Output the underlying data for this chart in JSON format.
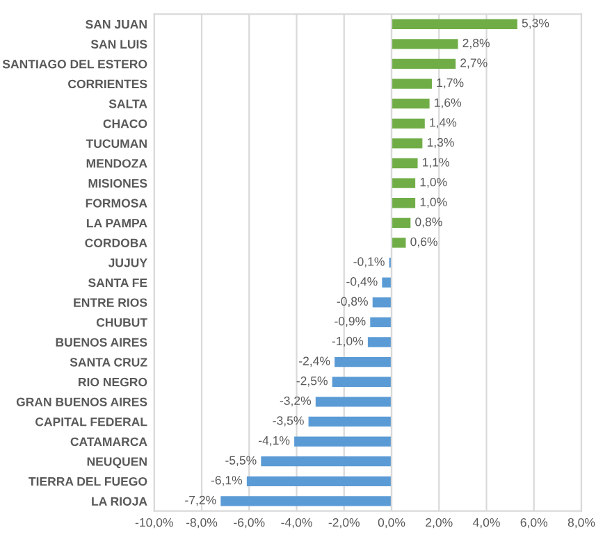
{
  "chart_data": {
    "type": "bar",
    "orientation": "horizontal",
    "categories": [
      "SAN JUAN",
      "SAN LUIS",
      "SANTIAGO DEL ESTERO",
      "CORRIENTES",
      "SALTA",
      "CHACO",
      "TUCUMAN",
      "MENDOZA",
      "MISIONES",
      "FORMOSA",
      "LA PAMPA",
      "CORDOBA",
      "JUJUY",
      "SANTA FE",
      "ENTRE RIOS",
      "CHUBUT",
      "BUENOS AIRES",
      "SANTA CRUZ",
      "RIO NEGRO",
      "GRAN BUENOS AIRES",
      "CAPITAL FEDERAL",
      "CATAMARCA",
      "NEUQUEN",
      "TIERRA DEL FUEGO",
      "LA RIOJA"
    ],
    "values": [
      5.3,
      2.8,
      2.7,
      1.7,
      1.6,
      1.4,
      1.3,
      1.1,
      1.0,
      1.0,
      0.8,
      0.6,
      -0.1,
      -0.4,
      -0.8,
      -0.9,
      -1.0,
      -2.4,
      -2.5,
      -3.2,
      -3.5,
      -4.1,
      -5.5,
      -6.1,
      -7.2
    ],
    "value_labels": [
      "5,3%",
      "2,8%",
      "2,7%",
      "1,7%",
      "1,6%",
      "1,4%",
      "1,3%",
      "1,1%",
      "1,0%",
      "1,0%",
      "0,8%",
      "0,6%",
      "-0,1%",
      "-0,4%",
      "-0,8%",
      "-0,9%",
      "-1,0%",
      "-2,4%",
      "-2,5%",
      "-3,2%",
      "-3,5%",
      "-4,1%",
      "-5,5%",
      "-6,1%",
      "-7,2%"
    ],
    "colors": [
      "#70ad47",
      "#70ad47",
      "#70ad47",
      "#70ad47",
      "#70ad47",
      "#70ad47",
      "#70ad47",
      "#70ad47",
      "#70ad47",
      "#70ad47",
      "#70ad47",
      "#70ad47",
      "#5b9bd5",
      "#5b9bd5",
      "#5b9bd5",
      "#5b9bd5",
      "#5b9bd5",
      "#5b9bd5",
      "#5b9bd5",
      "#5b9bd5",
      "#5b9bd5",
      "#5b9bd5",
      "#5b9bd5",
      "#5b9bd5",
      "#5b9bd5"
    ],
    "xlim": [
      -10,
      8
    ],
    "xticks": [
      {
        "value": -10,
        "label": "-10,0%"
      },
      {
        "value": -8,
        "label": "-8,0%"
      },
      {
        "value": -6,
        "label": "-6,0%"
      },
      {
        "value": -4,
        "label": "-4,0%"
      },
      {
        "value": -2,
        "label": "-2,0%"
      },
      {
        "value": 0,
        "label": "0,0%"
      },
      {
        "value": 2,
        "label": "2,0%"
      },
      {
        "value": 4,
        "label": "4,0%"
      },
      {
        "value": 6,
        "label": "6,0%"
      },
      {
        "value": 8,
        "label": "8,0%"
      }
    ],
    "grid": "x",
    "legend": false
  }
}
